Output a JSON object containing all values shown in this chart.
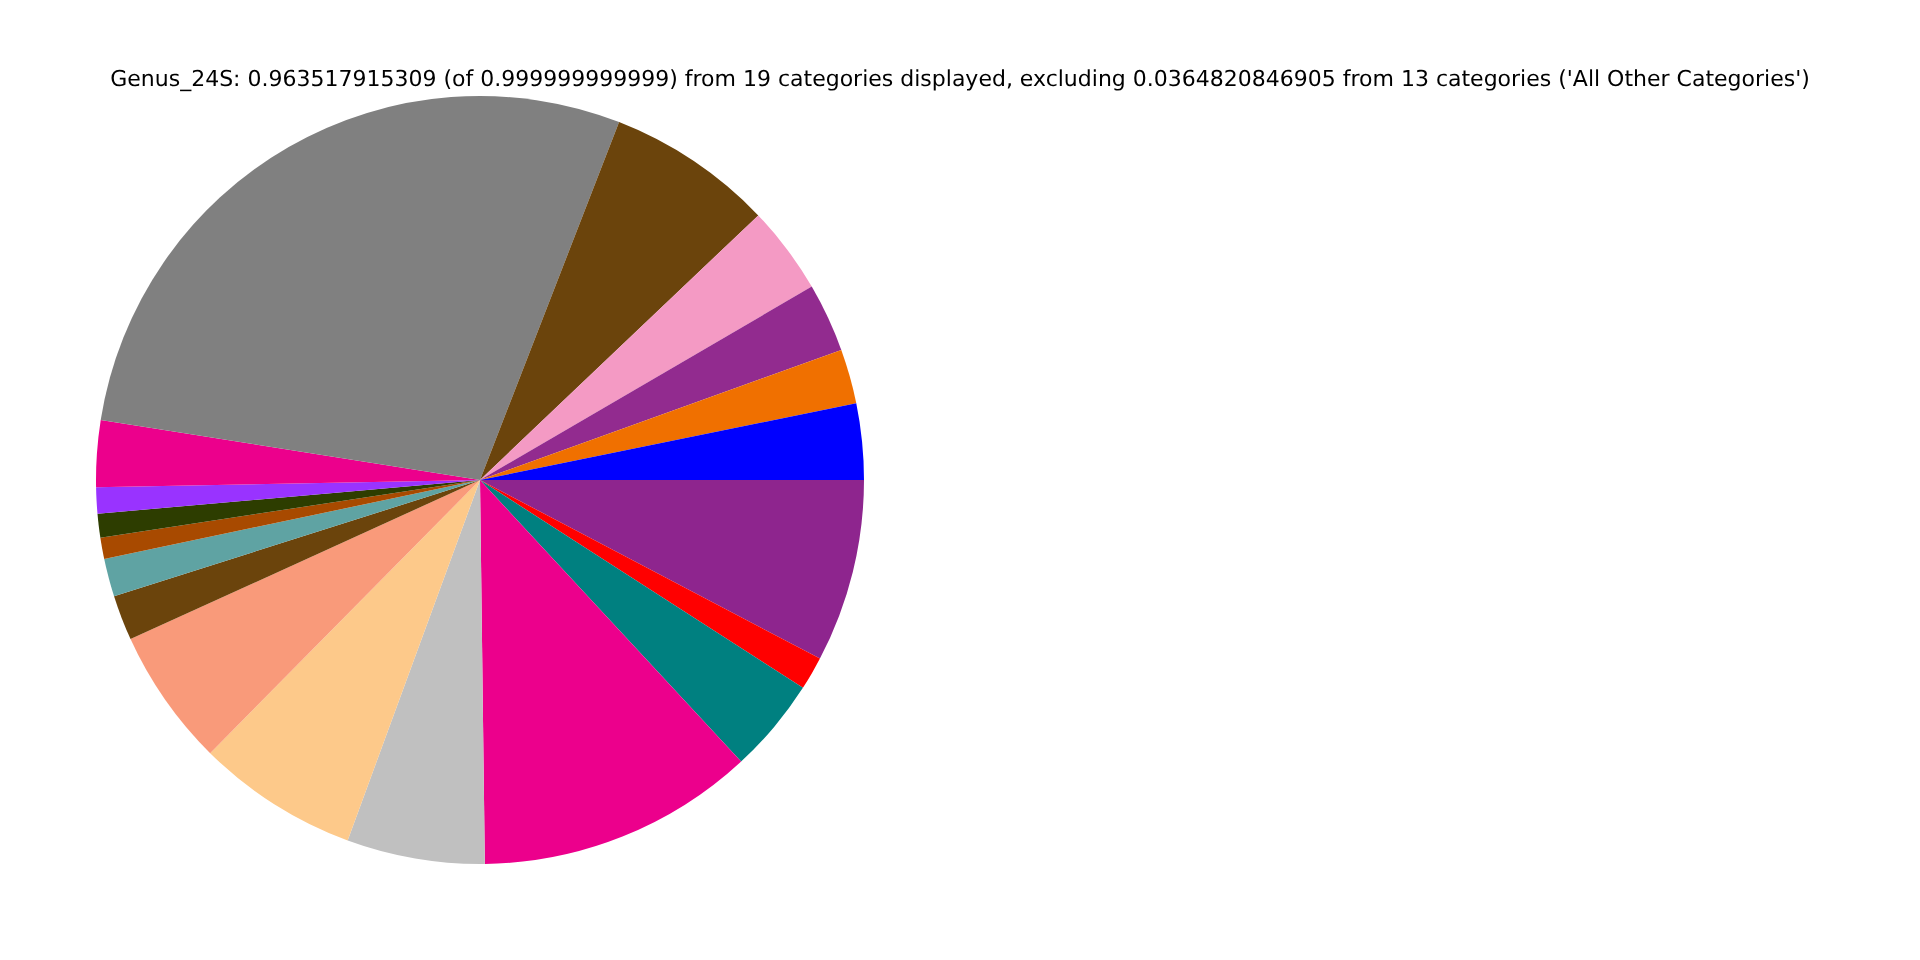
{
  "chart_data": {
    "type": "pie",
    "title": "Genus_24S: 0.963517915309 (of 0.999999999999) from 19 categories displayed, excluding 0.0364820846905 from 13 categories ('All Other Categories')",
    "categories": [
      null,
      null,
      null,
      null,
      null,
      null,
      null,
      null,
      null,
      null,
      null,
      null,
      null,
      null,
      null,
      null,
      null,
      null,
      null
    ],
    "values": [
      3.2,
      2.3,
      2.9,
      3.7,
      7.0,
      28.4,
      2.8,
      1.1,
      1.0,
      0.9,
      1.6,
      1.9,
      5.8,
      6.8,
      5.8,
      11.7,
      4.0,
      1.4,
      7.7
    ],
    "colors": [
      "#0000ff",
      "#f07000",
      "#922b8f",
      "#f49ac4",
      "#6b440c",
      "#808080",
      "#ec008c",
      "#9933ff",
      "#2d3d00",
      "#a84a00",
      "#5fa3a3",
      "#6b440c",
      "#f99a7a",
      "#fdc98a",
      "#c0c0c0",
      "#ec008c",
      "#008080",
      "#ff0000",
      "#8e258e"
    ],
    "legend": false
  }
}
